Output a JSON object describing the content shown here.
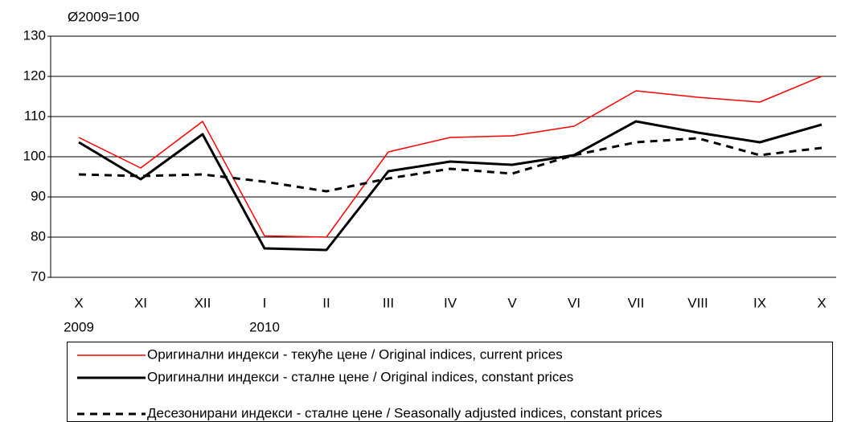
{
  "chart_data": {
    "type": "line",
    "y_unit_label": "Ø2009=100",
    "categories": [
      "X",
      "XI",
      "XII",
      "I",
      "II",
      "III",
      "IV",
      "V",
      "VI",
      "VII",
      "VIII",
      "IX",
      "X"
    ],
    "x_sublabels": [
      "2009",
      null,
      null,
      "2010",
      null,
      null,
      null,
      null,
      null,
      null,
      null,
      null,
      null
    ],
    "ylim": [
      70,
      130
    ],
    "yticks": [
      70,
      80,
      90,
      100,
      110,
      120,
      130
    ],
    "grid": true,
    "series": [
      {
        "name": "Оригинални индекси - текуће цене / Original indices, current prices",
        "color": "#ff0000",
        "width": 1.5,
        "dashed": false,
        "values": [
          104.8,
          97.2,
          108.8,
          80.3,
          80.0,
          101.2,
          104.8,
          105.2,
          107.6,
          116.4,
          114.8,
          113.6,
          120.0
        ]
      },
      {
        "name": "Оригинални индекси - сталне цене / Original indices, constant prices",
        "color": "#000000",
        "width": 3,
        "dashed": false,
        "values": [
          103.6,
          94.4,
          105.6,
          77.2,
          76.8,
          96.4,
          98.8,
          98.0,
          100.4,
          108.8,
          106.0,
          103.6,
          108.0
        ]
      },
      {
        "name": "Десезонирани индекси - сталне цене / Seasonally adjusted indices, constant prices",
        "color": "#000000",
        "width": 3,
        "dashed": true,
        "values": [
          95.6,
          95.2,
          95.6,
          93.8,
          91.4,
          94.6,
          97.0,
          95.8,
          100.4,
          103.6,
          104.6,
          100.4,
          102.2
        ]
      }
    ]
  }
}
